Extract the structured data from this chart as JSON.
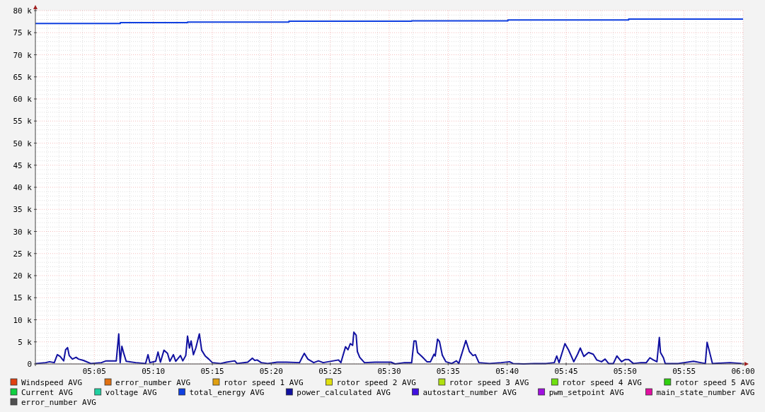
{
  "chart_data": {
    "type": "line",
    "xlim": [
      5,
      6
    ],
    "ylim": [
      0,
      80000
    ],
    "xticks": [
      {
        "value": 5.0833,
        "label": "05:05"
      },
      {
        "value": 5.1667,
        "label": "05:10"
      },
      {
        "value": 5.25,
        "label": "05:15"
      },
      {
        "value": 5.3333,
        "label": "05:20"
      },
      {
        "value": 5.4167,
        "label": "05:25"
      },
      {
        "value": 5.5,
        "label": "05:30"
      },
      {
        "value": 5.5833,
        "label": "05:35"
      },
      {
        "value": 5.6667,
        "label": "05:40"
      },
      {
        "value": 5.75,
        "label": "05:45"
      },
      {
        "value": 5.8333,
        "label": "05:50"
      },
      {
        "value": 5.9167,
        "label": "05:55"
      },
      {
        "value": 6,
        "label": "06:00"
      }
    ],
    "yticks": [
      0,
      {
        "value": 5000,
        "label": "5 k"
      },
      {
        "value": 10000,
        "label": "10 k"
      },
      {
        "value": 15000,
        "label": "15 k"
      },
      {
        "value": 20000,
        "label": "20 k"
      },
      {
        "value": 25000,
        "label": "25 k"
      },
      {
        "value": 30000,
        "label": "30 k"
      },
      {
        "value": 35000,
        "label": "35 k"
      },
      {
        "value": 40000,
        "label": "40 k"
      },
      {
        "value": 45000,
        "label": "45 k"
      },
      {
        "value": 50000,
        "label": "50 k"
      },
      {
        "value": 55000,
        "label": "55 k"
      },
      {
        "value": 60000,
        "label": "60 k"
      },
      {
        "value": 65000,
        "label": "65 k"
      },
      {
        "value": 70000,
        "label": "70 k"
      },
      {
        "value": 75000,
        "label": "75 k"
      },
      {
        "value": 80000,
        "label": "80 k"
      }
    ],
    "grid": true,
    "legend": "bottom",
    "line_style": "solid",
    "series": [
      {
        "name": "Windspeed AVG",
        "color": "#e04010",
        "values": [
          null
        ]
      },
      {
        "name": "error_number AVG",
        "color": "#e07010",
        "values": [
          null
        ]
      },
      {
        "name": "rotor speed 1 AVG",
        "color": "#e0a010",
        "values": [
          null
        ]
      },
      {
        "name": "rotor speed 2 AVG",
        "color": "#e0e010",
        "values": [
          null
        ]
      },
      {
        "name": "rotor speed 3 AVG",
        "color": "#b0e010",
        "values": [
          null
        ]
      },
      {
        "name": "rotor speed 4 AVG",
        "color": "#70e010",
        "values": [
          null
        ]
      },
      {
        "name": "rotor speed 5 AVG",
        "color": "#30d010",
        "values": [
          null
        ]
      },
      {
        "name": "Current AVG",
        "color": "#10d040",
        "values": [
          null
        ]
      },
      {
        "name": "voltage AVG",
        "color": "#20d0a0",
        "values": [
          null
        ]
      },
      {
        "name": "total_energy AVG",
        "color": "#1040e0",
        "type": "step",
        "x": [
          5,
          5.12,
          5.215,
          5.3583,
          5.5317,
          5.6677,
          5.8383,
          6
        ],
        "values": [
          77100,
          77300,
          77400,
          77600,
          77700,
          77900,
          78100,
          78100
        ]
      },
      {
        "name": "power_calculated AVG",
        "color": "#1010a0",
        "x": [
          5,
          5.0017,
          5.0145,
          5.02,
          5.0267,
          5.031,
          5.035,
          5.04,
          5.0427,
          5.0455,
          5.0478,
          5.0523,
          5.0575,
          5.061,
          5.0678,
          5.0783,
          5.0933,
          5.1,
          5.1143,
          5.1178,
          5.1198,
          5.1222,
          5.1247,
          5.1283,
          5.1417,
          5.1557,
          5.1592,
          5.1617,
          5.17,
          5.1733,
          5.1767,
          5.1817,
          5.1867,
          5.19,
          5.195,
          5.1983,
          5.205,
          5.2083,
          5.2125,
          5.215,
          5.2177,
          5.22,
          5.2233,
          5.2267,
          5.2317,
          5.235,
          5.24,
          5.245,
          5.25,
          5.2617,
          5.27,
          5.2817,
          5.285,
          5.3,
          5.3067,
          5.31,
          5.3133,
          5.3192,
          5.3283,
          5.3417,
          5.355,
          5.3733,
          5.3767,
          5.38,
          5.385,
          5.3933,
          5.4,
          5.4067,
          5.4283,
          5.4317,
          5.4383,
          5.4417,
          5.445,
          5.4483,
          5.45,
          5.4533,
          5.455,
          5.4583,
          5.465,
          5.48,
          5.5025,
          5.5083,
          5.5217,
          5.5317,
          5.535,
          5.5377,
          5.54,
          5.5467,
          5.5533,
          5.5583,
          5.5633,
          5.565,
          5.5683,
          5.571,
          5.575,
          5.58,
          5.5883,
          5.595,
          5.5983,
          5.6083,
          5.6133,
          5.6183,
          5.6217,
          5.6267,
          5.6417,
          5.6583,
          5.67,
          5.675,
          5.69,
          5.705,
          5.7217,
          5.7333,
          5.7367,
          5.74,
          5.7483,
          5.7533,
          5.7567,
          5.7608,
          5.7662,
          5.77,
          5.775,
          5.7817,
          5.7883,
          5.7933,
          5.8,
          5.805,
          5.81,
          5.8167,
          5.8217,
          5.8283,
          5.8333,
          5.8383,
          5.845,
          5.8558,
          5.8633,
          5.8683,
          5.8733,
          5.8783,
          5.8817,
          5.8833,
          5.8875,
          5.89,
          5.9083,
          5.93,
          5.94,
          5.9467,
          5.9492,
          5.9533,
          5.9567,
          5.9817,
          5.9983
        ],
        "values": [
          100,
          100,
          300,
          500,
          300,
          2100,
          1700,
          700,
          3200,
          3700,
          1900,
          1100,
          1500,
          1100,
          800,
          100,
          300,
          700,
          700,
          6800,
          300,
          4000,
          2500,
          600,
          300,
          100,
          2100,
          300,
          600,
          2700,
          400,
          3100,
          2400,
          600,
          2100,
          600,
          1900,
          700,
          1900,
          6300,
          3600,
          5200,
          2100,
          3600,
          6800,
          3100,
          1800,
          1100,
          300,
          100,
          400,
          700,
          100,
          400,
          1300,
          800,
          900,
          300,
          100,
          400,
          400,
          300,
          1400,
          2400,
          1100,
          300,
          700,
          300,
          900,
          300,
          3900,
          3200,
          4600,
          4200,
          7200,
          6500,
          2800,
          1500,
          300,
          400,
          400,
          0,
          300,
          300,
          5200,
          5200,
          2600,
          1600,
          500,
          500,
          2200,
          1800,
          5600,
          5100,
          2000,
          500,
          100,
          700,
          100,
          5300,
          2800,
          1900,
          2100,
          300,
          100,
          300,
          500,
          100,
          0,
          100,
          100,
          300,
          1800,
          300,
          4600,
          3200,
          2000,
          500,
          2200,
          3600,
          1700,
          2600,
          2200,
          900,
          500,
          1100,
          100,
          100,
          1800,
          500,
          1000,
          1000,
          100,
          300,
          300,
          1400,
          900,
          500,
          6000,
          2600,
          1400,
          100,
          100,
          600,
          300,
          100,
          4900,
          2300,
          100,
          300,
          100
        ]
      },
      {
        "name": "autostart_number AVG",
        "color": "#4010e0",
        "values": [
          null
        ]
      },
      {
        "name": "pwm_setpoint AVG",
        "color": "#a010e0",
        "values": [
          null
        ]
      },
      {
        "name": "main_state_number AVG",
        "color": "#e010a0",
        "values": [
          null
        ]
      },
      {
        "name": "error_number AVG",
        "color": "#505050",
        "values": [
          null
        ]
      }
    ]
  }
}
